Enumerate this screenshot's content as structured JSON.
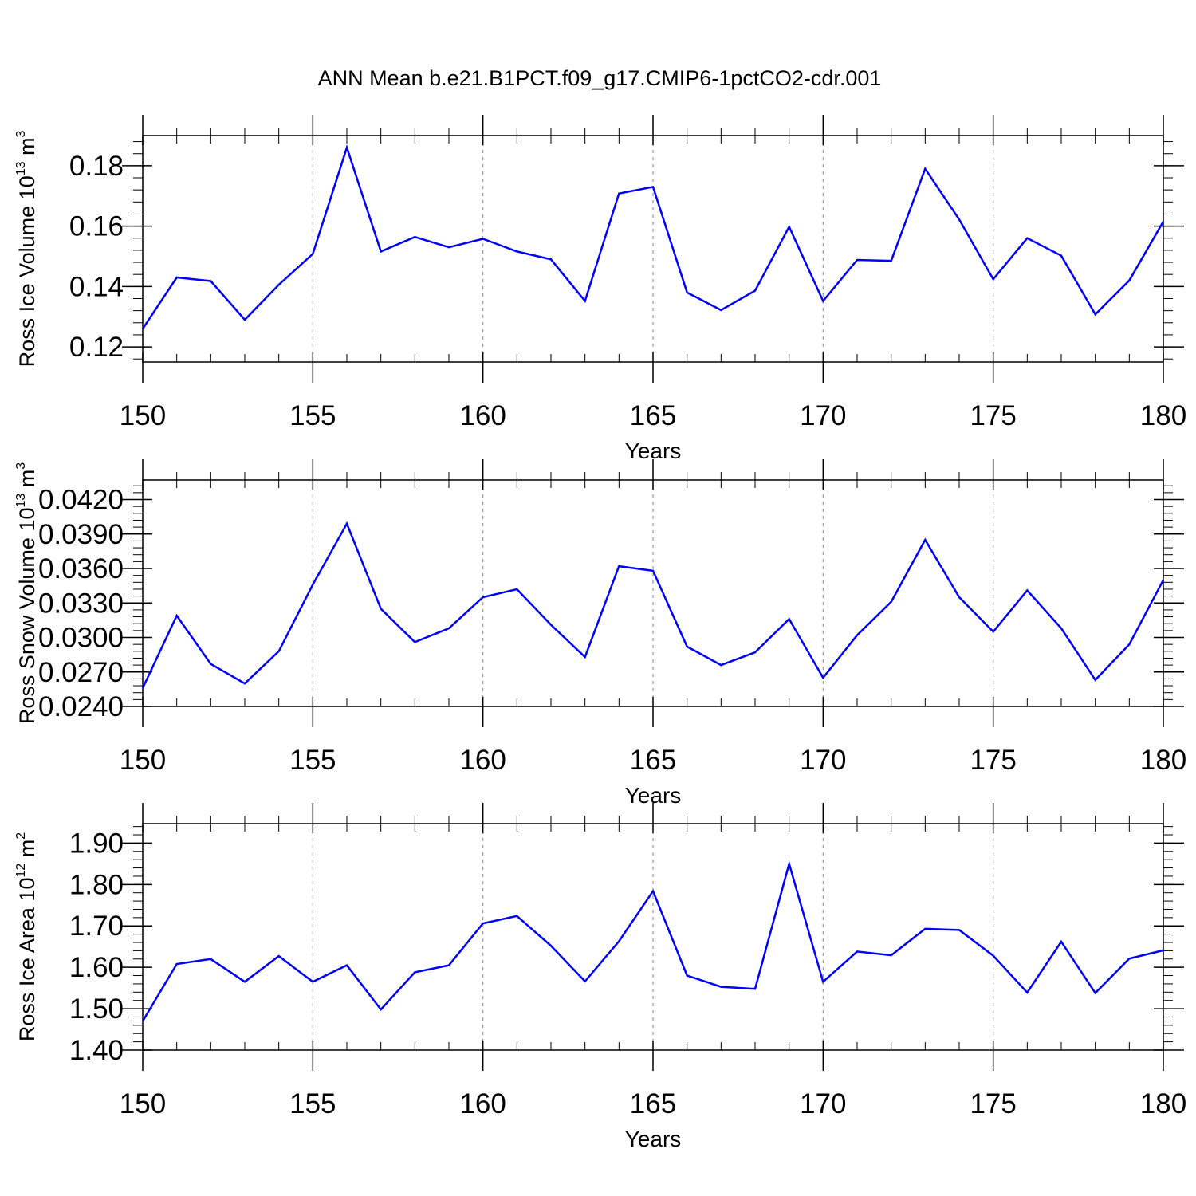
{
  "title": "ANN Mean b.e21.B1PCT.f09_g17.CMIP6-1pctCO2-cdr.001",
  "line_color": "#0000ff",
  "chart_data": [
    {
      "type": "line",
      "title": "ANN Mean b.e21.B1PCT.f09_g17.CMIP6-1pctCO2-cdr.001",
      "xlabel": "Years",
      "ylabel": {
        "text": "Ross Ice Volume 10",
        "exp": "13",
        "unit": " m",
        "unit_exp": "3"
      },
      "xlim": [
        150,
        180
      ],
      "xticks": [
        "150",
        "155",
        "160",
        "165",
        "170",
        "175",
        "180"
      ],
      "ylim": [
        0.115,
        0.19
      ],
      "yticks": [
        "0.12",
        "0.14",
        "0.16",
        "0.18"
      ],
      "grid": "dashed vertical at major x ticks",
      "x": [
        150,
        151,
        152,
        153,
        154,
        155,
        156,
        157,
        158,
        159,
        160,
        161,
        162,
        163,
        164,
        165,
        166,
        167,
        168,
        169,
        170,
        171,
        172,
        173,
        174,
        175,
        176,
        177,
        178,
        179,
        180
      ],
      "values": [
        0.126,
        0.143,
        0.1418,
        0.129,
        0.1406,
        0.1508,
        0.186,
        0.1516,
        0.1564,
        0.153,
        0.1558,
        0.1516,
        0.149,
        0.1352,
        0.1708,
        0.173,
        0.138,
        0.1322,
        0.1386,
        0.1598,
        0.1352,
        0.1488,
        0.1485,
        0.179,
        0.1622,
        0.1424,
        0.156,
        0.1502,
        0.1308,
        0.142,
        0.1615
      ]
    },
    {
      "type": "line",
      "xlabel": "Years",
      "ylabel": {
        "text": "Ross Snow Volume 10",
        "exp": "13",
        "unit": " m",
        "unit_exp": "3"
      },
      "xlim": [
        150,
        180
      ],
      "xticks": [
        "150",
        "155",
        "160",
        "165",
        "170",
        "175",
        "180"
      ],
      "ylim": [
        0.024,
        0.0437
      ],
      "yticks": [
        "0.0240",
        "0.0270",
        "0.0300",
        "0.0330",
        "0.0360",
        "0.0390",
        "0.0420"
      ],
      "grid": "dashed vertical at major x ticks",
      "x": [
        150,
        151,
        152,
        153,
        154,
        155,
        156,
        157,
        158,
        159,
        160,
        161,
        162,
        163,
        164,
        165,
        166,
        167,
        168,
        169,
        170,
        171,
        172,
        173,
        174,
        175,
        176,
        177,
        178,
        179,
        180
      ],
      "values": [
        0.0256,
        0.0319,
        0.0277,
        0.026,
        0.0288,
        0.0346,
        0.0399,
        0.0325,
        0.0296,
        0.0308,
        0.0335,
        0.0342,
        0.0311,
        0.0283,
        0.0362,
        0.0358,
        0.0292,
        0.0276,
        0.0287,
        0.0316,
        0.0265,
        0.0302,
        0.0331,
        0.0385,
        0.0335,
        0.0305,
        0.0341,
        0.0308,
        0.0263,
        0.0294,
        0.035
      ]
    },
    {
      "type": "line",
      "xlabel": "Years",
      "ylabel": {
        "text": "Ross Ice Area 10",
        "exp": "12",
        "unit": " m",
        "unit_exp": "2"
      },
      "xlim": [
        150,
        180
      ],
      "xticks": [
        "150",
        "155",
        "160",
        "165",
        "170",
        "175",
        "180"
      ],
      "ylim": [
        1.4,
        1.947
      ],
      "yticks": [
        "1.40",
        "1.50",
        "1.60",
        "1.70",
        "1.80",
        "1.90"
      ],
      "grid": "dashed vertical at major x ticks",
      "x": [
        150,
        151,
        152,
        153,
        154,
        155,
        156,
        157,
        158,
        159,
        160,
        161,
        162,
        163,
        164,
        165,
        166,
        167,
        168,
        169,
        170,
        171,
        172,
        173,
        174,
        175,
        176,
        177,
        178,
        179,
        180
      ],
      "values": [
        1.47,
        1.608,
        1.62,
        1.565,
        1.627,
        1.565,
        1.605,
        1.498,
        1.588,
        1.605,
        1.706,
        1.724,
        1.652,
        1.566,
        1.663,
        1.784,
        1.58,
        1.553,
        1.548,
        1.85,
        1.565,
        1.638,
        1.629,
        1.693,
        1.69,
        1.628,
        1.539,
        1.662,
        1.538,
        1.621,
        1.641
      ]
    }
  ]
}
